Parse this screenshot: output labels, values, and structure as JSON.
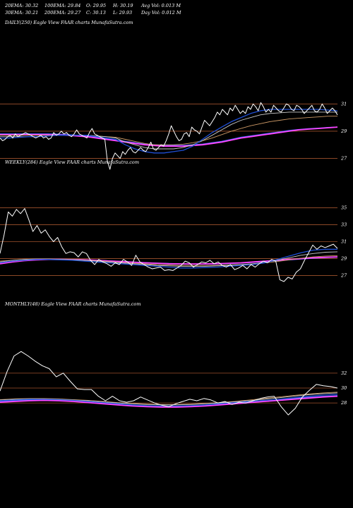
{
  "header": {
    "ema20": "20EMA: 30.32",
    "ema100": "100EMA: 29.84",
    "open": "O: 29.95",
    "high": "H: 30.19",
    "avgvol": "Avg Vol: 0.013  M",
    "ema30": "30EMA: 30.21",
    "ema200": "200EMA: 29.27",
    "close": "C: 30.13",
    "low": "L: 29.93",
    "dayvol": "Day Vol: 0.012  M"
  },
  "colors": {
    "background": "#000000",
    "price": "#ffffff",
    "gridline": "#a0522d",
    "ema_short": "#1f4fd6",
    "ema_mid": "#c9c9c9",
    "ema_long": "#cc9966",
    "ma_fast": "#ff44ff",
    "ma_slow": "#3d6dff"
  },
  "chart_data": [
    {
      "type": "line",
      "title": "DAILY(250) Eagle  View  FAAR charts MunafaSutra.com",
      "yticks": [
        27,
        29,
        31
      ],
      "ylim": [
        26.2,
        32.0
      ],
      "series": [
        {
          "key": "price",
          "values": [
            28.5,
            28.3,
            28.4,
            28.6,
            28.7,
            28.5,
            28.8,
            28.6,
            28.7,
            28.8,
            28.9,
            28.8,
            28.7,
            28.6,
            28.5,
            28.6,
            28.7,
            28.5,
            28.6,
            28.4,
            28.5,
            28.9,
            28.7,
            28.8,
            29.0,
            28.8,
            28.9,
            28.7,
            28.6,
            28.8,
            29.1,
            28.8,
            28.7,
            28.6,
            28.5,
            28.9,
            29.2,
            28.8,
            28.7,
            28.6,
            28.5,
            28.4,
            26.8,
            26.2,
            27.0,
            27.4,
            27.2,
            27.0,
            27.5,
            27.3,
            27.6,
            27.8,
            27.5,
            27.4,
            27.6,
            27.8,
            27.6,
            27.5,
            27.8,
            28.2,
            27.7,
            27.6,
            27.8,
            28.0,
            27.9,
            28.3,
            28.8,
            29.4,
            29.0,
            28.6,
            28.3,
            28.4,
            28.8,
            28.9,
            28.6,
            29.3,
            29.1,
            29.0,
            28.8,
            29.3,
            29.8,
            29.6,
            29.4,
            29.7,
            30.0,
            30.4,
            30.2,
            30.6,
            30.4,
            30.2,
            30.7,
            30.5,
            30.9,
            30.6,
            30.3,
            30.5,
            30.3,
            30.8,
            30.6,
            31.0,
            30.8,
            30.5,
            31.1,
            30.8,
            30.4,
            30.6,
            30.4,
            30.9,
            30.7,
            30.5,
            30.4,
            30.7,
            31.0,
            30.9,
            30.6,
            30.5,
            30.9,
            30.8,
            30.6,
            30.3,
            30.5,
            30.7,
            30.9,
            30.5,
            30.4,
            30.6,
            31.0,
            30.7,
            30.3,
            30.5,
            30.7,
            30.5,
            30.2
          ]
        },
        {
          "key": "ema_short",
          "values": [
            28.5,
            28.5,
            28.55,
            28.6,
            28.6,
            28.65,
            28.7,
            28.7,
            28.7,
            28.7,
            28.6,
            28.5,
            28.4,
            28.0,
            27.7,
            27.5,
            27.4,
            27.4,
            27.5,
            27.6,
            27.9,
            28.4,
            28.9,
            29.3,
            29.7,
            30.0,
            30.3,
            30.5,
            30.6,
            30.6,
            30.6,
            30.6,
            30.6,
            30.6,
            30.55,
            30.5
          ]
        },
        {
          "key": "ema_mid",
          "values": [
            28.6,
            28.6,
            28.6,
            28.6,
            28.6,
            28.65,
            28.7,
            28.7,
            28.7,
            28.7,
            28.65,
            28.6,
            28.5,
            28.2,
            28.0,
            27.8,
            27.7,
            27.7,
            27.7,
            27.8,
            28.0,
            28.3,
            28.7,
            29.1,
            29.5,
            29.8,
            30.0,
            30.2,
            30.3,
            30.35,
            30.4,
            30.4,
            30.4,
            30.4,
            30.4,
            30.4
          ]
        },
        {
          "key": "ema_long",
          "values": [
            28.7,
            28.7,
            28.7,
            28.7,
            28.7,
            28.7,
            28.7,
            28.7,
            28.7,
            28.7,
            28.65,
            28.6,
            28.55,
            28.4,
            28.25,
            28.1,
            28.0,
            28.0,
            28.0,
            28.05,
            28.15,
            28.3,
            28.5,
            28.75,
            29.0,
            29.2,
            29.4,
            29.55,
            29.7,
            29.8,
            29.9,
            29.95,
            30.0,
            30.05,
            30.1,
            30.1
          ]
        },
        {
          "key": "ma_fast",
          "values": [
            28.75,
            28.75,
            28.75,
            28.75,
            28.75,
            28.75,
            28.72,
            28.7,
            28.65,
            28.6,
            28.5,
            28.4,
            28.3,
            28.2,
            28.1,
            28.0,
            27.95,
            27.9,
            27.9,
            27.9,
            27.95,
            28.0,
            28.1,
            28.2,
            28.35,
            28.5,
            28.6,
            28.7,
            28.8,
            28.9,
            29.0,
            29.1,
            29.15,
            29.2,
            29.25,
            29.3
          ]
        },
        {
          "key": "ma_slow",
          "values": [
            28.8,
            28.8,
            28.8,
            28.8,
            28.8,
            28.8,
            28.78,
            28.75,
            28.7,
            28.65,
            28.55,
            28.45,
            28.35,
            28.25,
            28.15,
            28.05,
            28.0,
            27.95,
            27.95,
            27.95,
            28.0,
            28.05,
            28.15,
            28.25,
            28.4,
            28.55,
            28.65,
            28.75,
            28.85,
            28.95,
            29.05,
            29.12,
            29.18,
            29.22,
            29.27,
            29.3
          ]
        }
      ]
    },
    {
      "type": "line",
      "title": "WEEKLY(284) Eagle  View  FAAR charts MunafaSutra.com",
      "yticks": [
        27,
        29,
        31,
        33,
        35
      ],
      "ylim": [
        25.8,
        36.2
      ],
      "series": [
        {
          "key": "price",
          "values": [
            29.6,
            31.8,
            34.5,
            34.0,
            34.8,
            34.3,
            34.9,
            33.6,
            32.2,
            32.9,
            32.0,
            32.4,
            31.6,
            31.0,
            31.5,
            30.4,
            29.6,
            29.8,
            29.7,
            29.2,
            29.8,
            29.6,
            28.8,
            28.3,
            28.9,
            28.6,
            28.4,
            28.1,
            28.5,
            28.3,
            28.9,
            28.6,
            28.2,
            29.4,
            28.6,
            28.3,
            28.0,
            27.8,
            27.9,
            28.0,
            27.6,
            27.7,
            27.6,
            27.9,
            28.2,
            28.7,
            28.5,
            28.0,
            28.3,
            28.6,
            28.5,
            28.8,
            28.4,
            28.6,
            28.2,
            28.0,
            28.3,
            27.7,
            27.9,
            28.2,
            27.8,
            28.3,
            28.0,
            28.4,
            28.7,
            28.5,
            28.9,
            28.7,
            26.5,
            26.3,
            26.8,
            26.6,
            27.4,
            27.8,
            28.8,
            29.7,
            30.6,
            30.1,
            30.5,
            30.3,
            30.5,
            30.7,
            30.2
          ]
        },
        {
          "key": "ema_short",
          "values": [
            28.5,
            28.7,
            28.8,
            28.9,
            28.9,
            28.85,
            28.8,
            28.7,
            28.6,
            28.5,
            28.4,
            28.3,
            28.2,
            28.1,
            28.0,
            27.9,
            27.9,
            27.95,
            28.0,
            28.1,
            28.2,
            28.3,
            28.5,
            28.9,
            29.3,
            29.7,
            30.0,
            30.1,
            30.1
          ]
        },
        {
          "key": "ema_mid",
          "values": [
            28.6,
            28.8,
            28.9,
            28.95,
            28.95,
            28.9,
            28.85,
            28.8,
            28.7,
            28.6,
            28.5,
            28.4,
            28.3,
            28.2,
            28.15,
            28.1,
            28.1,
            28.1,
            28.15,
            28.2,
            28.3,
            28.4,
            28.55,
            28.8,
            29.1,
            29.4,
            29.6,
            29.75,
            29.8
          ]
        },
        {
          "key": "ema_long",
          "values": [
            28.7,
            28.8,
            28.9,
            28.95,
            28.95,
            28.92,
            28.88,
            28.82,
            28.75,
            28.65,
            28.55,
            28.45,
            28.38,
            28.3,
            28.25,
            28.2,
            28.2,
            28.2,
            28.2,
            28.25,
            28.3,
            28.4,
            28.5,
            28.65,
            28.85,
            29.05,
            29.2,
            29.3,
            29.35
          ]
        },
        {
          "key": "ma_fast",
          "values": [
            28.4,
            28.6,
            28.75,
            28.85,
            28.9,
            28.9,
            28.88,
            28.85,
            28.8,
            28.72,
            28.65,
            28.58,
            28.5,
            28.45,
            28.4,
            28.38,
            28.37,
            28.38,
            28.4,
            28.45,
            28.5,
            28.6,
            28.7,
            28.8,
            28.9,
            29.0,
            29.1,
            29.15,
            29.2
          ]
        },
        {
          "key": "ma_slow",
          "values": [
            28.5,
            28.65,
            28.8,
            28.88,
            28.92,
            28.92,
            28.9,
            28.86,
            28.8,
            28.74,
            28.67,
            28.6,
            28.53,
            28.47,
            28.42,
            28.38,
            28.36,
            28.36,
            28.38,
            28.42,
            28.48,
            28.56,
            28.65,
            28.75,
            28.85,
            28.95,
            29.05,
            29.12,
            29.18
          ]
        }
      ]
    },
    {
      "type": "line",
      "title": "MONTHLY(48) Eagle  View  FAAR charts MunafaSutra.com",
      "yticks": [
        28,
        30,
        32
      ],
      "ylim": [
        24.8,
        35.2
      ],
      "series": [
        {
          "key": "price",
          "values": [
            29.6,
            32.2,
            34.3,
            34.9,
            34.3,
            33.6,
            33.0,
            32.6,
            31.5,
            32.0,
            30.9,
            29.9,
            29.8,
            29.8,
            28.9,
            28.3,
            28.9,
            28.3,
            28.1,
            28.3,
            28.8,
            28.4,
            28.0,
            27.7,
            27.5,
            27.9,
            28.2,
            28.5,
            28.3,
            28.6,
            28.4,
            28.0,
            28.2,
            27.8,
            28.1,
            28.0,
            28.3,
            28.6,
            28.8,
            28.9,
            27.5,
            26.4,
            27.3,
            28.8,
            29.7,
            30.5,
            30.3,
            30.2,
            30.0
          ]
        },
        {
          "key": "ema_short",
          "values": [
            28.3,
            28.4,
            28.5,
            28.5,
            28.45,
            28.35,
            28.2,
            28.05,
            27.9,
            27.75,
            27.65,
            27.6,
            27.6,
            27.65,
            27.75,
            27.9,
            28.05,
            28.2,
            28.35,
            28.5,
            28.7,
            28.9,
            29.05,
            29.15
          ]
        },
        {
          "key": "ema_mid",
          "values": [
            28.4,
            28.5,
            28.55,
            28.55,
            28.5,
            28.4,
            28.3,
            28.15,
            28.0,
            27.9,
            27.8,
            27.75,
            27.75,
            27.8,
            27.9,
            28.0,
            28.15,
            28.3,
            28.5,
            28.7,
            28.9,
            29.1,
            29.25,
            29.35
          ]
        },
        {
          "key": "ema_long",
          "values": [
            28.45,
            28.55,
            28.6,
            28.6,
            28.55,
            28.45,
            28.35,
            28.2,
            28.05,
            27.95,
            27.85,
            27.8,
            27.8,
            27.85,
            27.95,
            28.05,
            28.2,
            28.4,
            28.6,
            28.8,
            29.0,
            29.2,
            29.35,
            29.45
          ]
        },
        {
          "key": "ma_fast",
          "values": [
            28.1,
            28.2,
            28.3,
            28.35,
            28.3,
            28.2,
            28.05,
            27.9,
            27.75,
            27.6,
            27.5,
            27.45,
            27.45,
            27.5,
            27.6,
            27.75,
            27.9,
            28.05,
            28.2,
            28.35,
            28.5,
            28.65,
            28.8,
            28.9
          ]
        },
        {
          "key": "ma_slow",
          "values": [
            28.2,
            28.3,
            28.4,
            28.4,
            28.35,
            28.25,
            28.1,
            27.95,
            27.8,
            27.7,
            27.6,
            27.55,
            27.55,
            27.6,
            27.7,
            27.85,
            28.0,
            28.15,
            28.3,
            28.45,
            28.6,
            28.75,
            28.88,
            28.98
          ]
        }
      ]
    }
  ]
}
